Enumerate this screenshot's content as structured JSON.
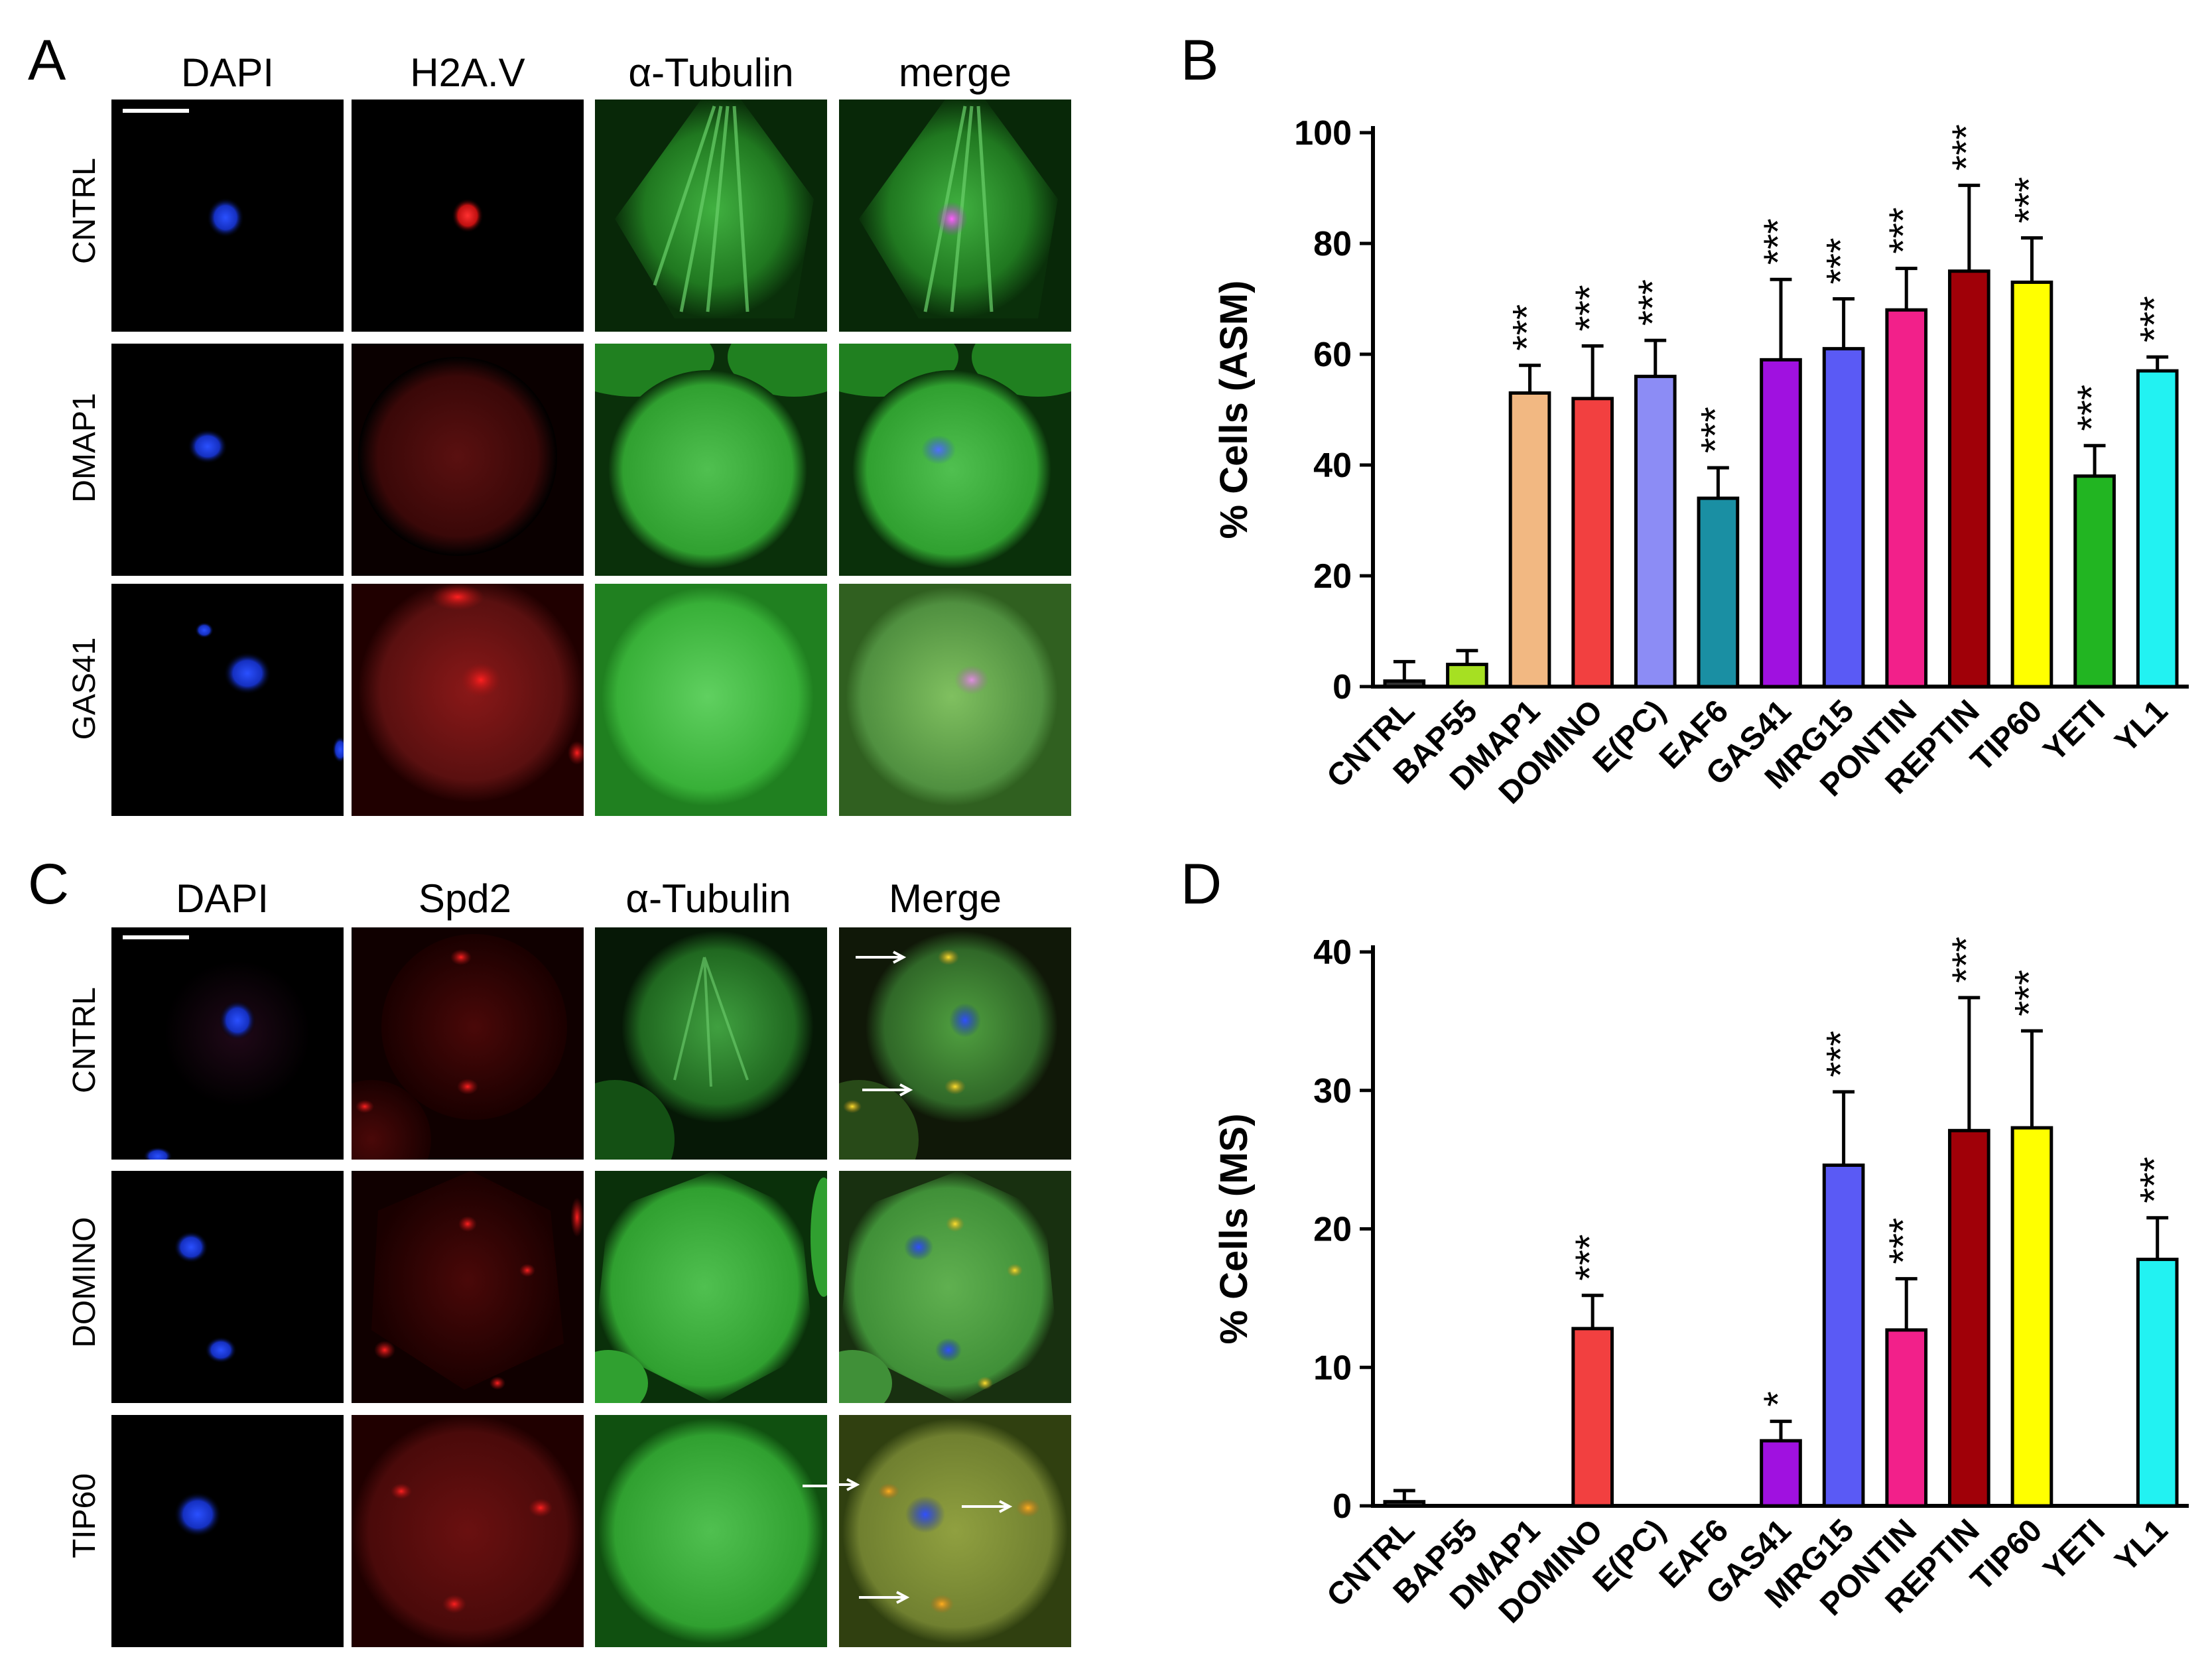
{
  "panels": {
    "A": {
      "letter": "A",
      "columns": [
        "DAPI",
        "H2A.V",
        "α-Tubulin",
        "merge"
      ],
      "rows": [
        "CNTRL",
        "DMAP1",
        "GAS41"
      ]
    },
    "C": {
      "letter": "C",
      "columns": [
        "DAPI",
        "Spd2",
        "α-Tubulin",
        "Merge"
      ],
      "rows": [
        "CNTRL",
        "DOMINO",
        "TIP60"
      ]
    },
    "B": {
      "letter": "B"
    },
    "D": {
      "letter": "D"
    }
  },
  "colors": {
    "CNTRL": "#333333",
    "BAP55": "#a6e022",
    "DMAP1": "#f2b882",
    "DOMINO": "#f24040",
    "E(PC)": "#8c8cf5",
    "EAF6": "#1a8fa3",
    "GAS41": "#a011e0",
    "MRG15": "#5a5af5",
    "PONTIN": "#f2208a",
    "REPTIN": "#a00008",
    "TIP60": "#ffff00",
    "YETI": "#22b522",
    "YL1": "#22f2f2"
  },
  "chart_data": [
    {
      "panel": "B",
      "type": "bar",
      "ylabel": "% Cells (ASM)",
      "ylim": [
        0,
        100
      ],
      "yticks": [
        0,
        20,
        40,
        60,
        80,
        100
      ],
      "categories": [
        "CNTRL",
        "BAP55",
        "DMAP1",
        "DOMINO",
        "E(PC)",
        "EAF6",
        "GAS41",
        "MRG15",
        "PONTIN",
        "REPTIN",
        "TIP60",
        "YETI",
        "YL1"
      ],
      "values": [
        1,
        4,
        53,
        52,
        56,
        34,
        59,
        61,
        68,
        75,
        73,
        38,
        57
      ],
      "errors": [
        3.5,
        2.5,
        5,
        9.5,
        6.5,
        5.5,
        14.5,
        9,
        7.5,
        15.5,
        8,
        5.5,
        2.5
      ],
      "significance": [
        "",
        "",
        "***",
        "***",
        "***",
        "***",
        "***",
        "***",
        "***",
        "***",
        "***",
        "***",
        "***"
      ]
    },
    {
      "panel": "D",
      "type": "bar",
      "ylabel": "% Cells (MS)",
      "ylim": [
        0,
        40
      ],
      "yticks": [
        0,
        10,
        20,
        30,
        40
      ],
      "categories": [
        "CNTRL",
        "BAP55",
        "DMAP1",
        "DOMINO",
        "E(PC)",
        "EAF6",
        "GAS41",
        "MRG15",
        "PONTIN",
        "REPTIN",
        "TIP60",
        "YETI",
        "YL1"
      ],
      "values": [
        0.3,
        0,
        0,
        12.8,
        0,
        0,
        4.7,
        24.6,
        12.7,
        27.1,
        27.3,
        0,
        17.8
      ],
      "errors": [
        0.8,
        0,
        0,
        2.4,
        0,
        0,
        1.4,
        5.3,
        3.7,
        9.6,
        7,
        0,
        3
      ],
      "significance": [
        "",
        "",
        "",
        "***",
        "",
        "",
        "*",
        "***",
        "***",
        "***",
        "***",
        "",
        "***"
      ]
    }
  ]
}
